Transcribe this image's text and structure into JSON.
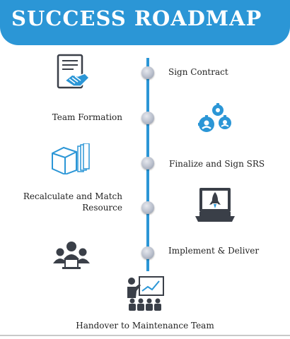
{
  "header": {
    "title": "SUCCESS ROADMAP"
  },
  "steps": [
    {
      "label": "Sign Contract",
      "icon": "handshake-contract-icon"
    },
    {
      "label": "Team Formation",
      "icon": "team-gears-icon"
    },
    {
      "label": "Finalize and Sign SRS",
      "icon": "document-box-icon"
    },
    {
      "label": "Recalculate and Match Resource",
      "label_line1": "Recalculate and Match",
      "label_line2": "Resource",
      "icon": "rocket-laptop-icon"
    },
    {
      "label": "Implement & Deliver",
      "icon": "team-meeting-icon"
    },
    {
      "label": "Handover to Maintenance Team",
      "icon": "presentation-icon"
    }
  ],
  "colors": {
    "accent": "#2b96d6",
    "icon": "#3a3f48",
    "icon_blue": "#2b96d6"
  }
}
